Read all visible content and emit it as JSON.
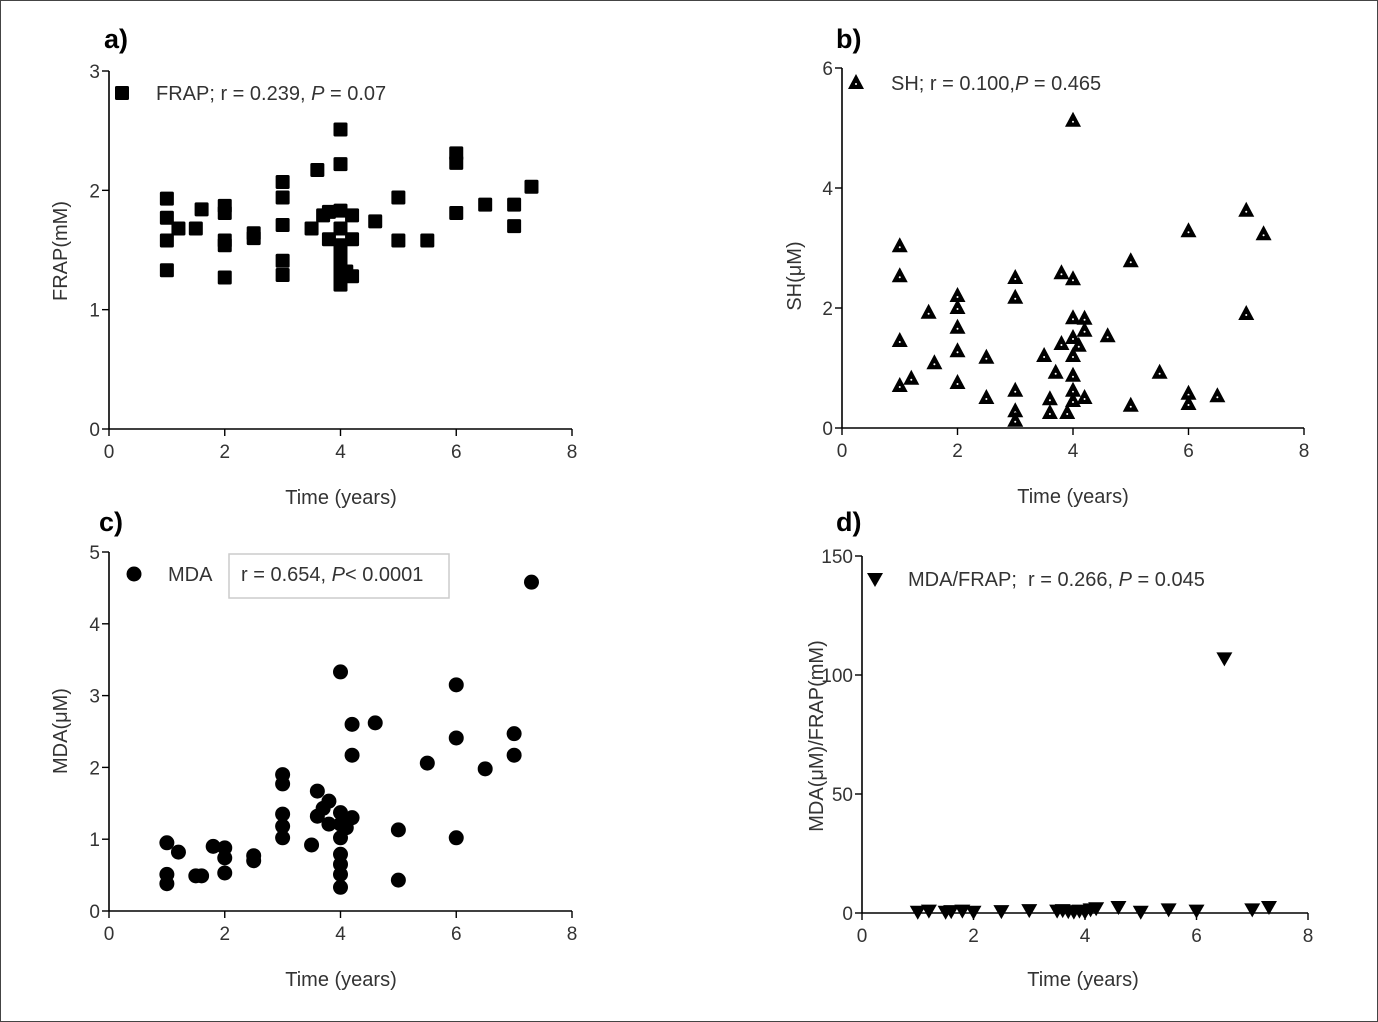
{
  "chart_data": [
    {
      "type": "scatter",
      "panel_label": "a)",
      "xlabel": "Time (years)",
      "ylabel": "FRAP(mM)",
      "xlim": [
        0,
        8
      ],
      "ylim": [
        0,
        3
      ],
      "xticks": [
        0,
        2,
        4,
        6,
        8
      ],
      "yticks": [
        0,
        1,
        2,
        3
      ],
      "marker": "square",
      "legend": {
        "prefix": "FRAP; r = 0.239, ",
        "italic": "P",
        "suffix": " = 0.07",
        "boxed": false
      },
      "grid": false,
      "points": [
        [
          1.0,
          1.93
        ],
        [
          1.0,
          1.77
        ],
        [
          1.0,
          1.58
        ],
        [
          1.0,
          1.33
        ],
        [
          1.2,
          1.68
        ],
        [
          1.5,
          1.68
        ],
        [
          1.6,
          1.84
        ],
        [
          2.0,
          1.87
        ],
        [
          2.0,
          1.81
        ],
        [
          2.0,
          1.58
        ],
        [
          2.0,
          1.54
        ],
        [
          2.0,
          1.27
        ],
        [
          2.5,
          1.64
        ],
        [
          2.5,
          1.6
        ],
        [
          3.0,
          2.07
        ],
        [
          3.0,
          1.94
        ],
        [
          3.0,
          1.71
        ],
        [
          3.0,
          1.41
        ],
        [
          3.0,
          1.29
        ],
        [
          3.5,
          1.68
        ],
        [
          3.6,
          2.17
        ],
        [
          3.7,
          1.79
        ],
        [
          3.8,
          1.82
        ],
        [
          3.8,
          1.59
        ],
        [
          4.0,
          2.51
        ],
        [
          4.0,
          2.22
        ],
        [
          4.0,
          1.83
        ],
        [
          4.0,
          1.68
        ],
        [
          4.0,
          1.54
        ],
        [
          4.0,
          1.45
        ],
        [
          4.0,
          1.36
        ],
        [
          4.0,
          1.27
        ],
        [
          4.0,
          1.21
        ],
        [
          4.2,
          1.79
        ],
        [
          4.2,
          1.59
        ],
        [
          4.1,
          1.32
        ],
        [
          4.2,
          1.28
        ],
        [
          4.6,
          1.74
        ],
        [
          5.0,
          1.94
        ],
        [
          5.0,
          1.58
        ],
        [
          5.5,
          1.58
        ],
        [
          6.0,
          2.31
        ],
        [
          6.0,
          2.23
        ],
        [
          6.0,
          1.81
        ],
        [
          6.5,
          1.88
        ],
        [
          7.0,
          1.88
        ],
        [
          7.0,
          1.7
        ],
        [
          7.3,
          2.03
        ]
      ]
    },
    {
      "type": "scatter",
      "panel_label": "b)",
      "xlabel": "Time (years)",
      "ylabel": "SH(μM)",
      "xlim": [
        0,
        8
      ],
      "ylim": [
        0,
        6
      ],
      "xticks": [
        0,
        2,
        4,
        6,
        8
      ],
      "yticks": [
        0,
        2,
        4,
        6
      ],
      "marker": "triangle-up",
      "legend": {
        "prefix": "SH; r = 0.100,",
        "italic": "P",
        "suffix": " = 0.465",
        "boxed": false
      },
      "grid": false,
      "points": [
        [
          1.0,
          3.03
        ],
        [
          1.0,
          2.53
        ],
        [
          1.0,
          1.45
        ],
        [
          1.0,
          0.7
        ],
        [
          1.2,
          0.82
        ],
        [
          1.5,
          1.92
        ],
        [
          1.6,
          1.08
        ],
        [
          2.0,
          2.2
        ],
        [
          2.0,
          2.0
        ],
        [
          2.0,
          1.67
        ],
        [
          2.0,
          1.28
        ],
        [
          2.0,
          0.75
        ],
        [
          2.5,
          1.17
        ],
        [
          2.5,
          0.5
        ],
        [
          3.0,
          2.5
        ],
        [
          3.0,
          2.17
        ],
        [
          3.0,
          0.62
        ],
        [
          3.0,
          0.28
        ],
        [
          3.0,
          0.12
        ],
        [
          3.5,
          1.2
        ],
        [
          3.6,
          0.48
        ],
        [
          3.6,
          0.25
        ],
        [
          3.7,
          0.92
        ],
        [
          3.8,
          2.58
        ],
        [
          3.8,
          1.4
        ],
        [
          3.9,
          0.25
        ],
        [
          4.0,
          5.12
        ],
        [
          4.0,
          2.48
        ],
        [
          4.0,
          1.83
        ],
        [
          4.0,
          1.5
        ],
        [
          4.0,
          1.2
        ],
        [
          4.0,
          0.87
        ],
        [
          4.0,
          0.62
        ],
        [
          4.0,
          0.45
        ],
        [
          4.1,
          1.37
        ],
        [
          4.2,
          1.82
        ],
        [
          4.2,
          1.62
        ],
        [
          4.2,
          0.5
        ],
        [
          4.6,
          1.53
        ],
        [
          5.0,
          2.78
        ],
        [
          5.0,
          0.37
        ],
        [
          5.5,
          0.92
        ],
        [
          6.0,
          3.28
        ],
        [
          6.0,
          0.57
        ],
        [
          6.0,
          0.4
        ],
        [
          6.5,
          0.53
        ],
        [
          7.0,
          3.62
        ],
        [
          7.0,
          1.9
        ],
        [
          7.3,
          3.23
        ]
      ]
    },
    {
      "type": "scatter",
      "panel_label": "c)",
      "xlabel": "Time (years)",
      "ylabel": "MDA(μM)",
      "xlim": [
        0,
        8
      ],
      "ylim": [
        0,
        5
      ],
      "xticks": [
        0,
        2,
        4,
        6,
        8
      ],
      "yticks": [
        0,
        1,
        2,
        3,
        4,
        5
      ],
      "marker": "circle",
      "legend": {
        "series": "MDA",
        "prefix": "r = 0.654, ",
        "italic": "P",
        "suffix": "< 0.0001",
        "boxed": true
      },
      "grid": false,
      "points": [
        [
          7.3,
          4.58
        ],
        [
          4.0,
          3.33
        ],
        [
          6.0,
          3.15
        ],
        [
          4.2,
          2.6
        ],
        [
          4.6,
          2.62
        ],
        [
          4.2,
          2.17
        ],
        [
          6.0,
          2.41
        ],
        [
          7.0,
          2.47
        ],
        [
          7.0,
          2.17
        ],
        [
          5.5,
          2.06
        ],
        [
          6.5,
          1.98
        ],
        [
          3.0,
          1.9
        ],
        [
          3.0,
          1.77
        ],
        [
          3.0,
          1.35
        ],
        [
          3.0,
          1.18
        ],
        [
          3.0,
          1.02
        ],
        [
          3.5,
          0.92
        ],
        [
          3.6,
          1.67
        ],
        [
          3.8,
          1.53
        ],
        [
          3.7,
          1.43
        ],
        [
          3.6,
          1.32
        ],
        [
          3.8,
          1.21
        ],
        [
          4.0,
          1.37
        ],
        [
          4.0,
          1.21
        ],
        [
          4.0,
          1.02
        ],
        [
          4.0,
          0.79
        ],
        [
          4.0,
          0.65
        ],
        [
          4.0,
          0.51
        ],
        [
          4.0,
          0.33
        ],
        [
          4.1,
          1.16
        ],
        [
          4.2,
          1.3
        ],
        [
          5.0,
          1.13
        ],
        [
          5.0,
          0.43
        ],
        [
          6.0,
          1.02
        ],
        [
          1.0,
          0.95
        ],
        [
          1.0,
          0.51
        ],
        [
          1.0,
          0.38
        ],
        [
          1.2,
          0.82
        ],
        [
          1.5,
          0.49
        ],
        [
          1.6,
          0.49
        ],
        [
          1.8,
          0.9
        ],
        [
          2.0,
          0.88
        ],
        [
          2.0,
          0.74
        ],
        [
          2.0,
          0.53
        ],
        [
          2.5,
          0.77
        ],
        [
          2.5,
          0.7
        ]
      ]
    },
    {
      "type": "scatter",
      "panel_label": "d)",
      "xlabel": "Time (years)",
      "ylabel": "MDA(μM)/FRAP(mM)",
      "xlim": [
        0,
        8
      ],
      "ylim": [
        0,
        150
      ],
      "xticks": [
        0,
        2,
        4,
        6,
        8
      ],
      "yticks": [
        0,
        50,
        100,
        150
      ],
      "marker": "triangle-down",
      "legend": {
        "prefix": "MDA/FRAP;  r = 0.266, ",
        "italic": "P",
        "suffix": " = 0.045",
        "boxed": false
      },
      "grid": false,
      "points": [
        [
          1.0,
          0.5
        ],
        [
          1.2,
          1.0
        ],
        [
          1.5,
          0.5
        ],
        [
          1.6,
          0.8
        ],
        [
          1.8,
          1.0
        ],
        [
          2.0,
          0.5
        ],
        [
          2.5,
          0.8
        ],
        [
          3.0,
          1.2
        ],
        [
          3.5,
          1.0
        ],
        [
          3.6,
          1.2
        ],
        [
          3.7,
          0.8
        ],
        [
          3.8,
          0.6
        ],
        [
          3.9,
          1.0
        ],
        [
          4.0,
          0.5
        ],
        [
          4.1,
          1.5
        ],
        [
          4.2,
          2.0
        ],
        [
          4.6,
          2.5
        ],
        [
          5.0,
          0.5
        ],
        [
          5.5,
          1.5
        ],
        [
          6.0,
          1.0
        ],
        [
          6.5,
          107
        ],
        [
          7.0,
          1.5
        ],
        [
          7.3,
          2.5
        ]
      ]
    }
  ]
}
